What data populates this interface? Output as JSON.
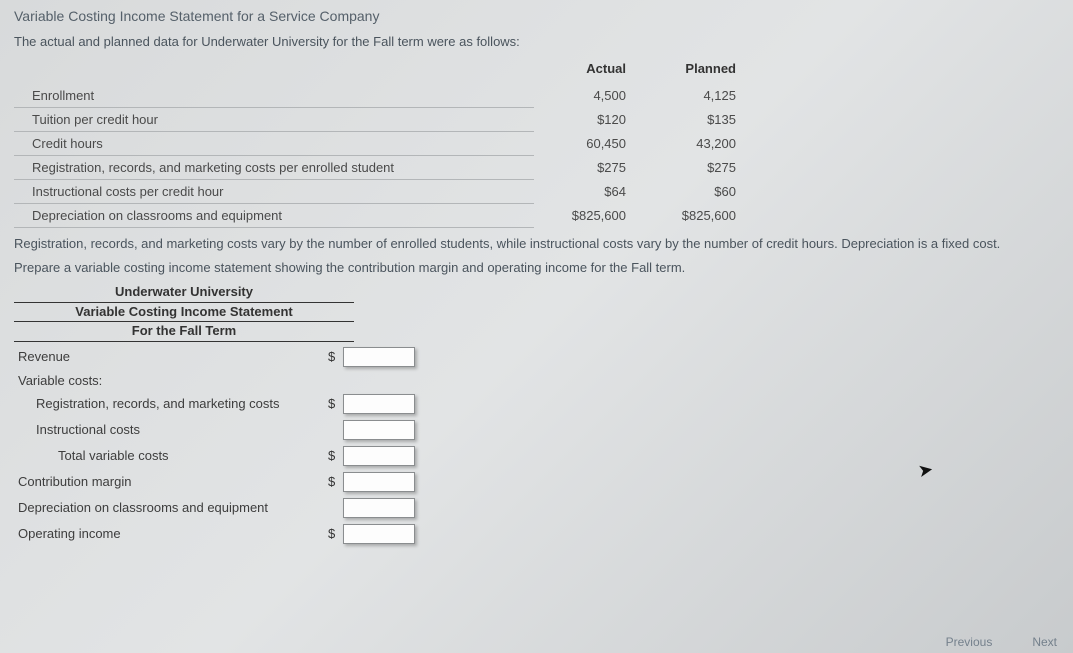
{
  "title": "Variable Costing Income Statement for a Service Company",
  "intro": "The actual and planned data for Underwater University for the Fall term were as follows:",
  "data_table": {
    "headers": [
      "",
      "Actual",
      "Planned"
    ],
    "rows": [
      {
        "label": "Enrollment",
        "actual": "4,500",
        "planned": "4,125"
      },
      {
        "label": "Tuition per credit hour",
        "actual": "$120",
        "planned": "$135"
      },
      {
        "label": "Credit hours",
        "actual": "60,450",
        "planned": "43,200"
      },
      {
        "label": "Registration, records, and marketing costs per enrolled student",
        "actual": "$275",
        "planned": "$275"
      },
      {
        "label": "Instructional costs per credit hour",
        "actual": "$64",
        "planned": "$60"
      },
      {
        "label": "Depreciation on classrooms and equipment",
        "actual": "$825,600",
        "planned": "$825,600"
      }
    ]
  },
  "note": "Registration, records, and marketing costs vary by the number of enrolled students, while instructional costs vary by the number of credit hours. Depreciation is a fixed cost.",
  "instruction": "Prepare a variable costing income statement showing the contribution margin and operating income for the Fall term.",
  "statement_header": {
    "l1": "Underwater University",
    "l2": "Variable Costing Income Statement",
    "l3": "For the Fall Term"
  },
  "statement_rows": [
    {
      "label": "Revenue",
      "indent": 0,
      "currency": "$",
      "input": true
    },
    {
      "label": "Variable costs:",
      "indent": 0,
      "currency": "",
      "input": false
    },
    {
      "label": "Registration, records, and marketing costs",
      "indent": 1,
      "currency": "$",
      "input": true
    },
    {
      "label": "Instructional costs",
      "indent": 1,
      "currency": "",
      "input": true
    },
    {
      "label": "Total variable costs",
      "indent": 2,
      "currency": "$",
      "input": true
    },
    {
      "label": "Contribution margin",
      "indent": 0,
      "currency": "$",
      "input": true
    },
    {
      "label": "Depreciation on classrooms and equipment",
      "indent": 0,
      "currency": "",
      "input": true
    },
    {
      "label": "Operating income",
      "indent": 0,
      "currency": "$",
      "input": true
    }
  ],
  "nav": {
    "prev": "Previous",
    "next": "Next"
  }
}
